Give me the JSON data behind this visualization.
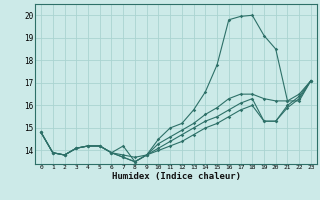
{
  "xlabel": "Humidex (Indice chaleur)",
  "bg_color": "#cceae8",
  "grid_color": "#aad4d1",
  "line_color": "#2d7068",
  "x_hours": [
    0,
    1,
    2,
    3,
    4,
    5,
    6,
    7,
    8,
    9,
    10,
    11,
    12,
    13,
    14,
    15,
    16,
    17,
    18,
    19,
    20,
    21,
    22,
    23
  ],
  "line_spike": [
    14.8,
    13.9,
    13.8,
    14.1,
    14.2,
    14.2,
    13.9,
    13.7,
    13.5,
    13.8,
    14.5,
    15.0,
    15.2,
    15.8,
    16.6,
    17.8,
    19.8,
    19.95,
    20.0,
    19.1,
    18.5,
    16.2,
    16.2,
    17.1
  ],
  "line_upper": [
    14.8,
    13.9,
    13.8,
    14.1,
    14.2,
    14.2,
    13.9,
    13.7,
    13.5,
    13.8,
    14.3,
    14.6,
    14.9,
    15.2,
    15.6,
    15.9,
    16.3,
    16.5,
    16.5,
    16.3,
    16.2,
    16.2,
    16.5,
    17.1
  ],
  "line_mid": [
    14.8,
    13.9,
    13.8,
    14.1,
    14.2,
    14.2,
    13.9,
    14.2,
    13.5,
    13.8,
    14.1,
    14.4,
    14.7,
    15.0,
    15.3,
    15.5,
    15.8,
    16.1,
    16.3,
    15.3,
    15.3,
    16.0,
    16.4,
    17.1
  ],
  "line_lower": [
    14.8,
    13.9,
    13.8,
    14.1,
    14.2,
    14.2,
    13.9,
    13.8,
    13.7,
    13.8,
    14.0,
    14.2,
    14.4,
    14.7,
    15.0,
    15.2,
    15.5,
    15.8,
    16.0,
    15.3,
    15.3,
    15.9,
    16.3,
    17.1
  ],
  "ylim": [
    13.4,
    20.5
  ],
  "yticks": [
    14,
    15,
    16,
    17,
    18,
    19,
    20
  ],
  "xticks": [
    0,
    1,
    2,
    3,
    4,
    5,
    6,
    7,
    8,
    9,
    10,
    11,
    12,
    13,
    14,
    15,
    16,
    17,
    18,
    19,
    20,
    21,
    22,
    23
  ]
}
